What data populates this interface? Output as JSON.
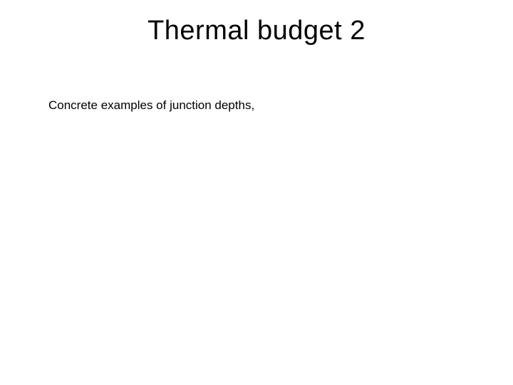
{
  "slide": {
    "title": "Thermal budget 2",
    "body_text": "Concrete examples of junction depths,",
    "title_fontsize": 38,
    "body_fontsize": 17,
    "text_color": "#000000",
    "background_color": "#ffffff",
    "font_family": "Arial"
  }
}
